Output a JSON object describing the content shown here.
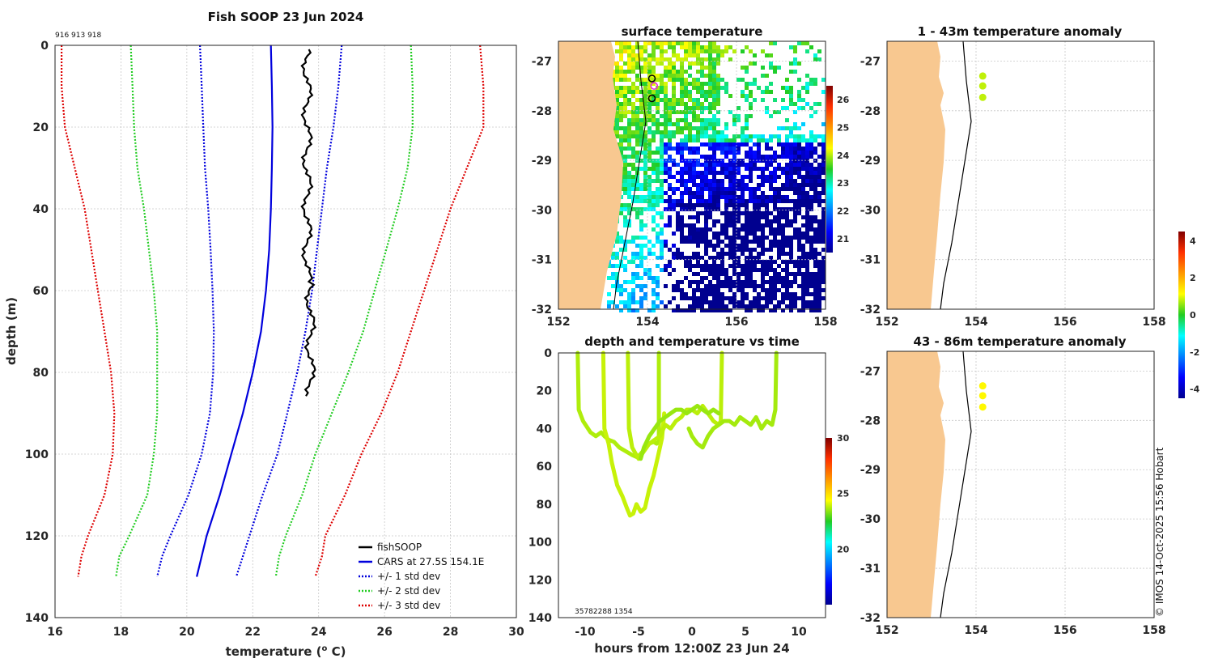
{
  "profile": {
    "title": "Fish SOOP 23 Jun 2024",
    "ids_label": "916 913 918",
    "xlabel": "temperature (",
    "xlabel_sup": "o",
    "xlabel_end": " C)",
    "ylabel": "depth (m)",
    "legend": {
      "fish": "fishSOOP",
      "cars": "CARS at 27.5S 154.1E",
      "std1": "+/- 1 std dev",
      "std2": "+/- 2 std dev",
      "std3": "+/- 3 std dev"
    }
  },
  "sst": {
    "title": "surface temperature"
  },
  "anom1": {
    "title": "1 - 43m temperature anomaly"
  },
  "anom2": {
    "title": "43 - 86m temperature anomaly"
  },
  "dt": {
    "title": "depth and temperature vs time",
    "xlabel": "hours from 12:00Z 23 Jun 24",
    "ids": "35782288 1354"
  },
  "credit": "© IMOS 14-Oct-2025 15:56 Hobart",
  "colors": {
    "fish": "#000000",
    "cars": "#0000dd",
    "std1": "#0000dd",
    "std2": "#22cc22",
    "std3": "#dd0000",
    "land": "#f8c890"
  },
  "chart_data": [
    {
      "type": "line",
      "name": "temperature profile",
      "xlabel": "temperature (o C)",
      "ylabel": "depth (m)",
      "xlim": [
        16,
        30
      ],
      "ylim": [
        140,
        0
      ],
      "xticks": [
        16,
        18,
        20,
        22,
        24,
        26,
        28,
        30
      ],
      "yticks": [
        0,
        20,
        40,
        60,
        80,
        100,
        120,
        140
      ],
      "depths": [
        0,
        10,
        20,
        30,
        40,
        50,
        60,
        70,
        80,
        90,
        100,
        110,
        120,
        125,
        130
      ],
      "series": [
        {
          "name": "CARS at 27.5S 154.1E",
          "style": "solid",
          "color": "#0000dd",
          "values": [
            22.55,
            22.58,
            22.6,
            22.58,
            22.55,
            22.5,
            22.4,
            22.25,
            22.0,
            21.7,
            21.35,
            21.0,
            20.6,
            20.45,
            20.3
          ]
        },
        {
          "name": "+/- 1 std dev low",
          "style": "dotted",
          "color": "#0000dd",
          "values": [
            20.4,
            20.45,
            20.5,
            20.55,
            20.65,
            20.72,
            20.78,
            20.82,
            20.8,
            20.7,
            20.45,
            20.05,
            19.5,
            19.25,
            19.1
          ]
        },
        {
          "name": "+/- 1 std dev high",
          "style": "dotted",
          "color": "#0000dd",
          "values": [
            24.7,
            24.6,
            24.45,
            24.25,
            24.1,
            23.95,
            23.8,
            23.6,
            23.35,
            23.05,
            22.75,
            22.3,
            21.9,
            21.7,
            21.5
          ]
        },
        {
          "name": "+/- 2 std dev low",
          "style": "dotted",
          "color": "#22cc22",
          "values": [
            18.3,
            18.35,
            18.4,
            18.5,
            18.7,
            18.85,
            19.0,
            19.1,
            19.1,
            19.1,
            19.0,
            18.8,
            18.25,
            17.95,
            17.85
          ]
        },
        {
          "name": "+/- 2 std dev high",
          "style": "dotted",
          "color": "#22cc22",
          "values": [
            26.8,
            26.85,
            26.85,
            26.7,
            26.4,
            26.05,
            25.7,
            25.35,
            24.9,
            24.4,
            23.9,
            23.5,
            23.0,
            22.8,
            22.7
          ]
        },
        {
          "name": "+/- 3 std dev low",
          "style": "dotted",
          "color": "#dd0000",
          "values": [
            16.2,
            16.2,
            16.3,
            16.6,
            16.9,
            17.1,
            17.3,
            17.5,
            17.7,
            17.8,
            17.75,
            17.5,
            17.0,
            16.8,
            16.7
          ]
        },
        {
          "name": "+/- 3 std dev high",
          "style": "dotted",
          "color": "#dd0000",
          "values": [
            28.9,
            29.0,
            29.0,
            28.5,
            28.0,
            27.6,
            27.2,
            26.8,
            26.4,
            25.9,
            25.3,
            24.8,
            24.2,
            24.1,
            23.9
          ]
        },
        {
          "name": "fishSOOP",
          "style": "solid",
          "color": "#000000",
          "depths": [
            1,
            5,
            10,
            20,
            30,
            40,
            50,
            58,
            65,
            75,
            80,
            86
          ],
          "values": [
            23.6,
            23.7,
            23.6,
            23.75,
            23.6,
            23.7,
            23.65,
            23.6,
            23.75,
            23.8,
            23.8,
            23.8
          ]
        }
      ]
    },
    {
      "type": "heatmap",
      "name": "surface temperature",
      "xlim": [
        152,
        158
      ],
      "ylim": [
        -32,
        -26.6
      ],
      "xticks": [
        152,
        154,
        156,
        158
      ],
      "yticks": [
        -27,
        -28,
        -29,
        -30,
        -31,
        -32
      ],
      "colorbar": {
        "ticks": [
          21,
          22,
          23,
          24,
          25,
          26
        ]
      },
      "markers": [
        {
          "lon": 154.1,
          "lat": -27.35,
          "color": "#000000"
        },
        {
          "lon": 154.15,
          "lat": -27.5,
          "color": "#e020e0"
        },
        {
          "lon": 154.1,
          "lat": -27.75,
          "color": "#000000"
        }
      ]
    },
    {
      "type": "scatter",
      "name": "1 - 43m temperature anomaly",
      "xlim": [
        152,
        158
      ],
      "ylim": [
        -32,
        -26.6
      ],
      "xticks": [
        152,
        154,
        156,
        158
      ],
      "yticks": [
        -27,
        -28,
        -29,
        -30,
        -31,
        -32
      ],
      "points": [
        {
          "lon": 154.15,
          "lat": -27.3,
          "anomaly": 0.8
        },
        {
          "lon": 154.15,
          "lat": -27.5,
          "anomaly": 0.8
        },
        {
          "lon": 154.15,
          "lat": -27.73,
          "anomaly": 0.8
        }
      ]
    },
    {
      "type": "scatter",
      "name": "43 - 86m temperature anomaly",
      "xlim": [
        152,
        158
      ],
      "ylim": [
        -32,
        -26.6
      ],
      "xticks": [
        152,
        154,
        156,
        158
      ],
      "yticks": [
        -27,
        -28,
        -29,
        -30,
        -31,
        -32
      ],
      "colorbar": {
        "ticks": [
          -4,
          -2,
          0,
          2,
          4
        ]
      },
      "points": [
        {
          "lon": 154.15,
          "lat": -27.3,
          "anomaly": 1.2
        },
        {
          "lon": 154.15,
          "lat": -27.5,
          "anomaly": 1.2
        },
        {
          "lon": 154.15,
          "lat": -27.73,
          "anomaly": 1.2
        }
      ]
    },
    {
      "type": "line",
      "name": "depth and temperature vs time",
      "xlabel": "hours from 12:00Z 23 Jun 24",
      "xlim": [
        -12.5,
        12.5
      ],
      "ylim": [
        140,
        0
      ],
      "xticks": [
        -10,
        -5,
        0,
        5,
        10
      ],
      "yticks": [
        0,
        20,
        40,
        60,
        80,
        100,
        120,
        140
      ],
      "colorbar": {
        "ticks": [
          20,
          25,
          30
        ]
      },
      "series": [
        {
          "name": "tow 1",
          "temp": 23.7,
          "x": [
            -10.7,
            -10.6,
            -10.2,
            -9.5,
            -9.0,
            -8.5,
            -8.2,
            -7.8,
            -7.3,
            -6.8,
            -6.2,
            -5.6,
            -5.2,
            -4.9,
            -4.6,
            -4.3,
            -4.0,
            -3.6,
            -3.3,
            -3.1,
            -3.1
          ],
          "y": [
            0,
            30,
            36,
            42,
            44,
            42,
            44,
            46,
            47,
            50,
            52,
            54,
            55,
            54,
            52,
            50,
            48,
            47,
            48,
            47,
            0
          ]
        },
        {
          "name": "tow 2",
          "temp": 23.9,
          "x": [
            -8.3,
            -8.2,
            -7.8,
            -7.5,
            -7.0,
            -6.5,
            -6.1,
            -5.8,
            -5.5,
            -5.2,
            -4.8,
            -4.4,
            -4.0,
            -3.6,
            -3.2,
            -2.8,
            -2.6
          ],
          "y": [
            0,
            40,
            48,
            58,
            70,
            76,
            82,
            86,
            85,
            80,
            84,
            82,
            72,
            65,
            55,
            45,
            32
          ]
        },
        {
          "name": "tow 3",
          "temp": 23.8,
          "x": [
            -6.0,
            -5.9,
            -5.6,
            -5.0,
            -4.5,
            -4.0,
            -3.5,
            -3.0,
            -2.5,
            -2.0,
            -1.5,
            -1.0,
            -0.5,
            0.0,
            0.5,
            1.0,
            1.5,
            2.0,
            2.5,
            2.7,
            2.8
          ],
          "y": [
            0,
            40,
            50,
            56,
            52,
            48,
            46,
            44,
            38,
            40,
            36,
            34,
            30,
            30,
            32,
            28,
            32,
            36,
            38,
            36,
            0
          ]
        },
        {
          "name": "tow 4",
          "temp": 23.6,
          "x": [
            -0.3,
            0.0,
            0.5,
            1.0,
            1.5,
            2.0,
            2.5,
            3.0,
            3.5,
            4.0,
            4.5,
            5.0,
            5.5,
            6.0,
            6.5,
            7.0,
            7.5,
            7.8,
            7.9
          ],
          "y": [
            40,
            44,
            48,
            50,
            44,
            40,
            38,
            36,
            36,
            38,
            34,
            36,
            38,
            34,
            40,
            36,
            38,
            30,
            0
          ]
        },
        {
          "name": "tow 5",
          "temp": 23.5,
          "x": [
            -4.8,
            -4.5,
            -4.0,
            -3.5,
            -3.0,
            -2.5,
            -2.0,
            -1.5,
            -1.0,
            -0.5,
            0.0,
            0.5,
            1.0,
            1.5,
            2.0,
            2.5
          ],
          "y": [
            56,
            50,
            44,
            40,
            36,
            34,
            32,
            30,
            30,
            32,
            30,
            28,
            30,
            32,
            30,
            32
          ]
        }
      ]
    }
  ]
}
